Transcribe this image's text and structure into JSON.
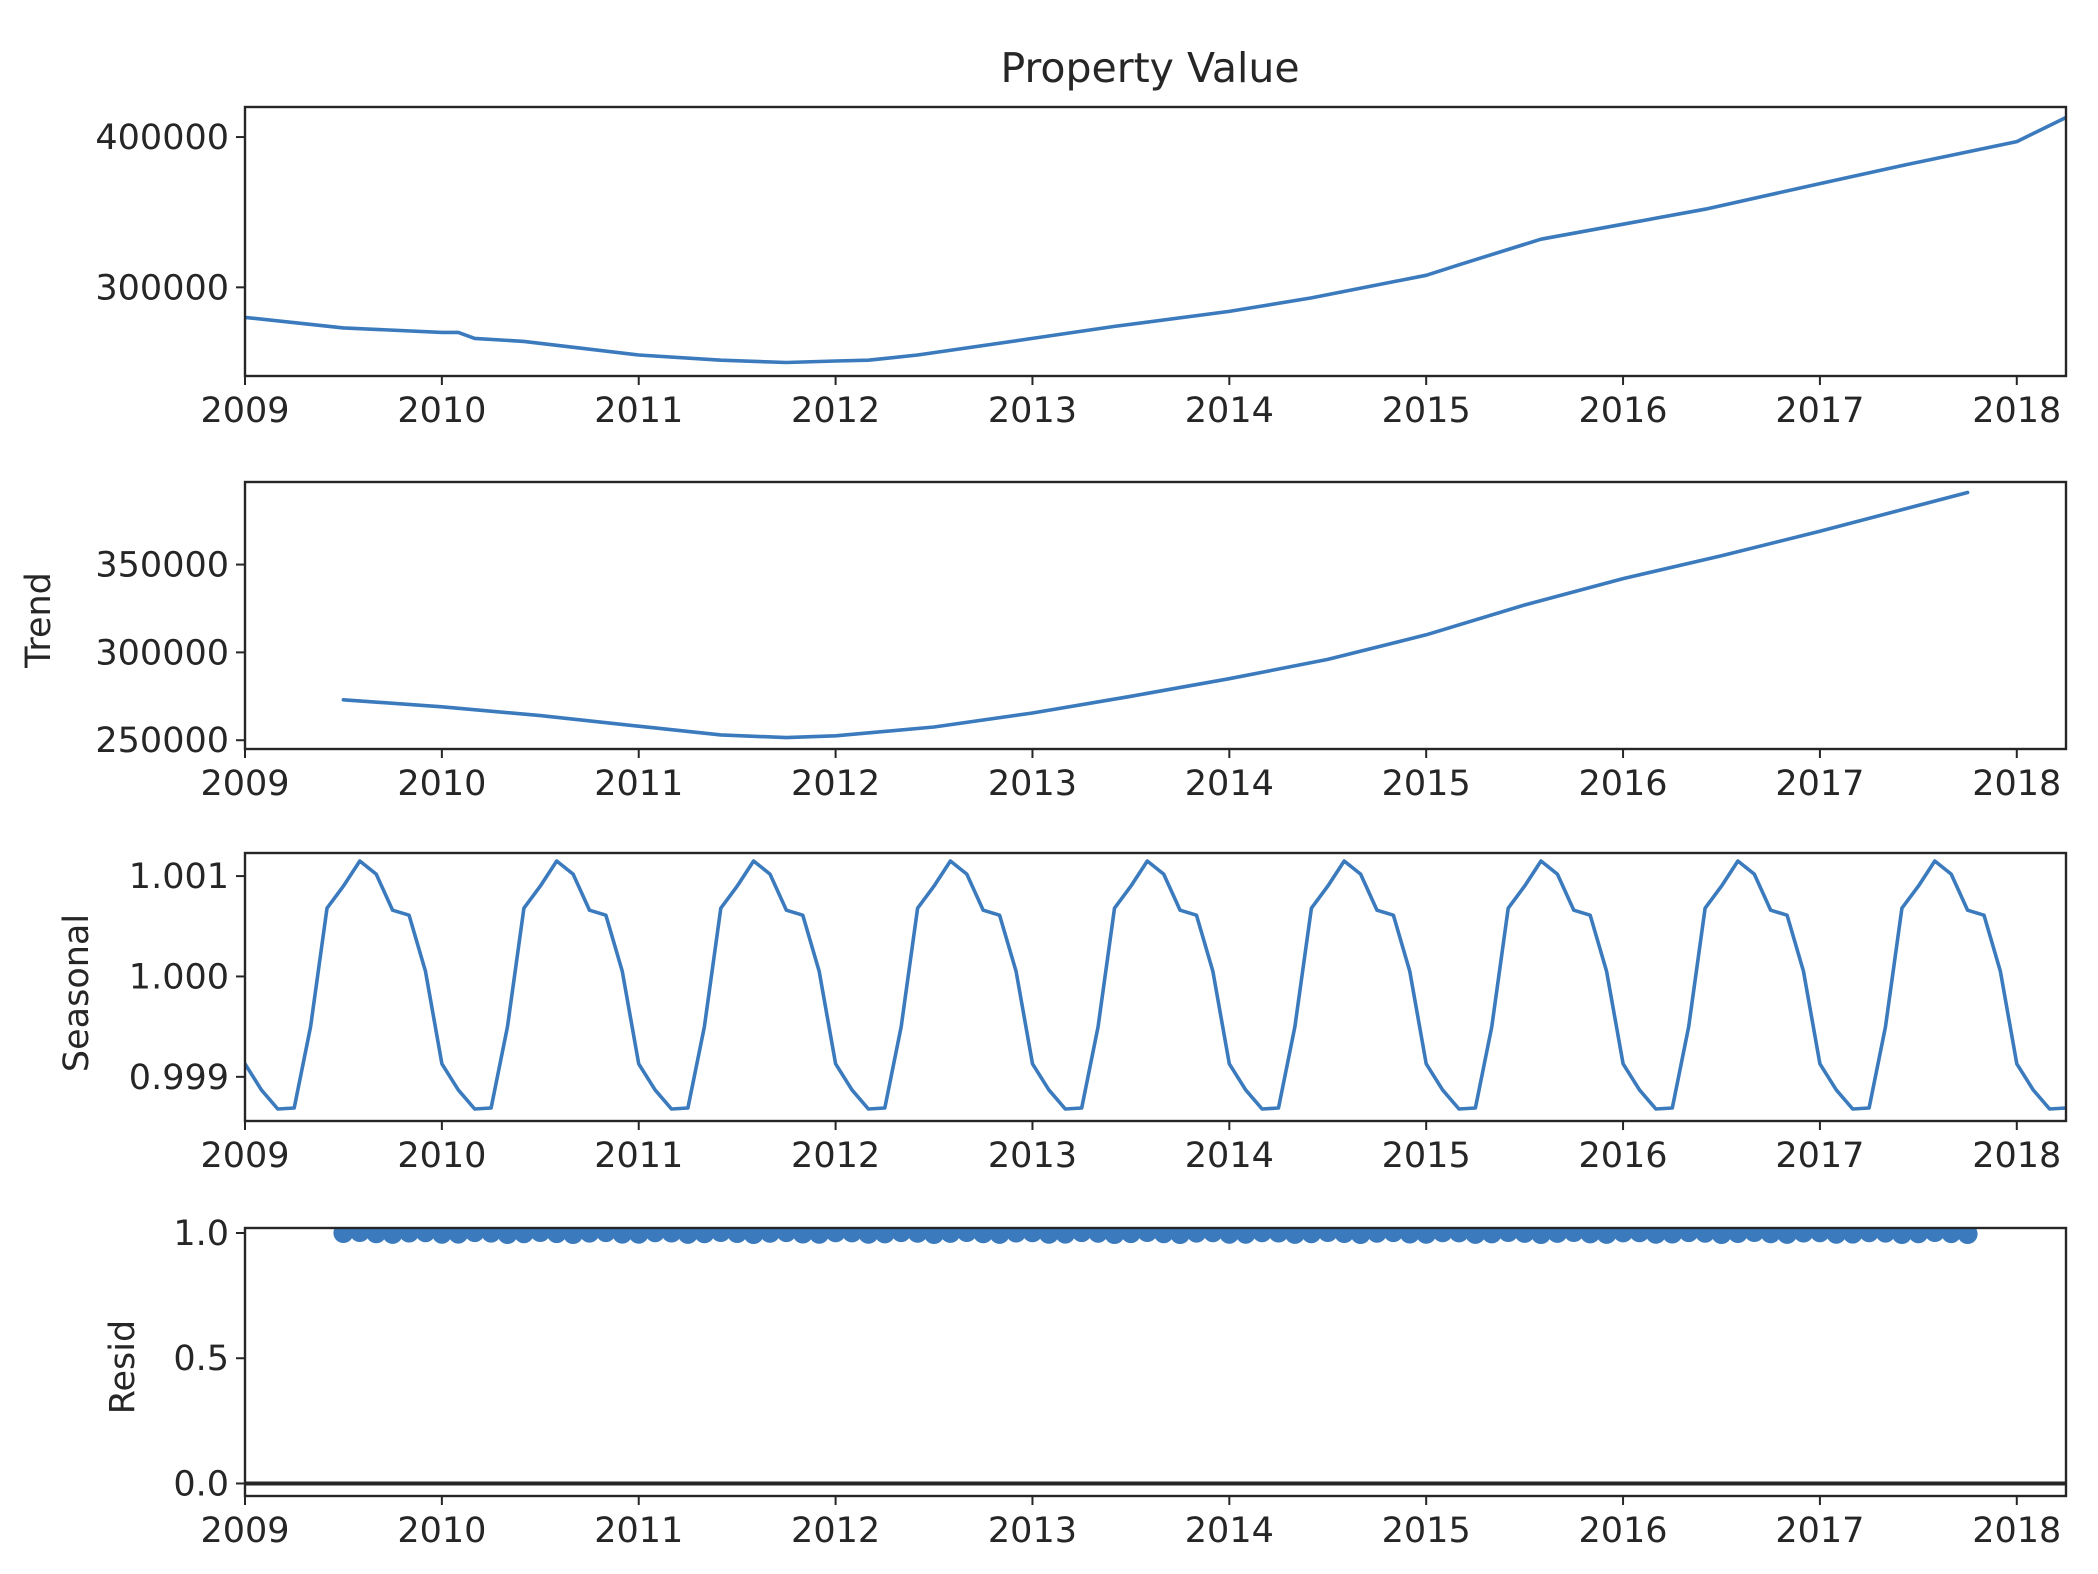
{
  "chart_data": {
    "type": "line",
    "title": "Property Value",
    "x_tick_labels": [
      "2009",
      "2010",
      "2011",
      "2012",
      "2013",
      "2014",
      "2015",
      "2016",
      "2017",
      "2018"
    ],
    "xlim": [
      "2009-01",
      "2018-04"
    ],
    "grid": false,
    "line_color": "#3b7bbd",
    "panels": [
      {
        "key": "observed",
        "ylabel": "",
        "type": "line",
        "ylim": [
          241000,
          420000
        ],
        "yticks": [
          300000,
          400000
        ],
        "ytick_labels": [
          "300000",
          "400000"
        ],
        "series": [
          {
            "x": [
              "2009-01",
              "2009-07",
              "2010-01",
              "2010-02",
              "2010-03",
              "2010-06",
              "2011-01",
              "2011-06",
              "2011-10",
              "2012-01",
              "2012-03",
              "2012-06",
              "2013-01",
              "2013-06",
              "2014-01",
              "2014-06",
              "2015-01",
              "2015-03",
              "2015-08",
              "2016-01",
              "2016-06",
              "2017-01",
              "2017-06",
              "2018-01",
              "2018-04"
            ],
            "values": [
              280000,
              273000,
              270000,
              270000,
              266000,
              264000,
              255000,
              251500,
              250000,
              251000,
              251500,
              255000,
              266000,
              274000,
              284000,
              293000,
              308000,
              315000,
              332000,
              342000,
              352000,
              369000,
              381000,
              397000,
              413000
            ]
          }
        ]
      },
      {
        "key": "trend",
        "ylabel": "Trend",
        "type": "line",
        "ylim": [
          245000,
          397000
        ],
        "yticks": [
          250000,
          300000,
          350000
        ],
        "ytick_labels": [
          "250000",
          "300000",
          "350000"
        ],
        "series": [
          {
            "x": [
              "2009-07",
              "2010-01",
              "2010-07",
              "2011-01",
              "2011-06",
              "2011-10",
              "2012-01",
              "2012-07",
              "2013-01",
              "2013-07",
              "2014-01",
              "2014-07",
              "2015-01",
              "2015-07",
              "2016-01",
              "2016-07",
              "2017-01",
              "2017-10"
            ],
            "values": [
              273000,
              269000,
              264000,
              258000,
              253000,
              251500,
              252500,
              257500,
              265500,
              275000,
              285000,
              296000,
              310000,
              327000,
              342000,
              355000,
              369000,
              391000
            ]
          }
        ]
      },
      {
        "key": "seasonal",
        "ylabel": "Seasonal",
        "type": "line",
        "ylim": [
          0.99856,
          1.00123
        ],
        "yticks": [
          0.999,
          1.0,
          1.001
        ],
        "ytick_labels": [
          "0.999",
          "1.000",
          "1.001"
        ],
        "series": [
          {
            "pattern_by_month": [
              0.99913,
              0.99887,
              0.99868,
              0.99869,
              0.9995,
              1.00068,
              1.0009,
              1.00115,
              1.00102,
              1.00066,
              1.00061,
              1.00005
            ],
            "x_start": "2009-01",
            "x_end": "2018-04"
          }
        ]
      },
      {
        "key": "resid",
        "ylabel": "Resid",
        "type": "scatter",
        "ylim": [
          -0.05,
          1.02
        ],
        "yticks": [
          0.0,
          0.5,
          1.0
        ],
        "ytick_labels": [
          "0.0",
          "0.5",
          "1.0"
        ],
        "baseline": 0.0,
        "series": [
          {
            "x_start": "2009-07",
            "x_end": "2017-10",
            "value": 1.0,
            "variation": 0.004
          }
        ]
      }
    ]
  }
}
